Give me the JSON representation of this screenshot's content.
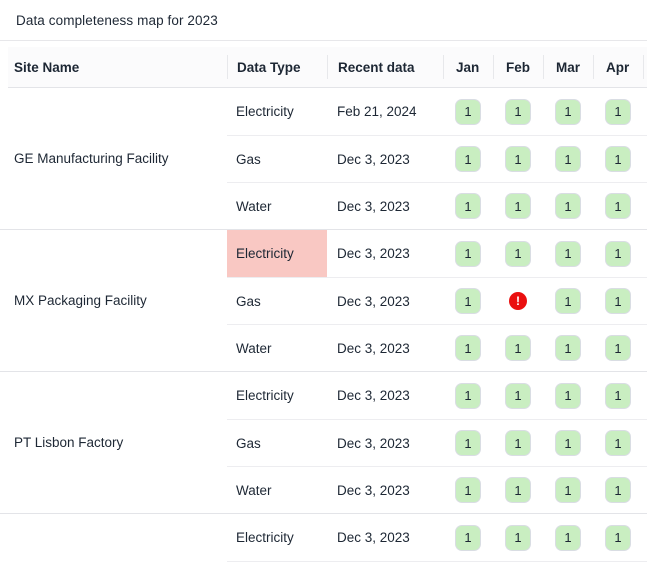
{
  "title": "Data completeness map for 2023",
  "colors": {
    "chip_green": "#c9eec1",
    "highlight_pink": "#f9c8c3",
    "error_red": "#ea0f0f",
    "text": "#1d2734"
  },
  "table": {
    "columns": [
      "Site Name",
      "Data Type",
      "Recent data",
      "Jan",
      "Feb",
      "Mar",
      "Apr"
    ],
    "groups": [
      {
        "site_name": "GE Manufacturing Facility",
        "rows": [
          {
            "data_type": "Electricity",
            "recent": "Feb 21, 2024",
            "highlight": false,
            "months": [
              "1",
              "1",
              "1",
              "1"
            ]
          },
          {
            "data_type": "Gas",
            "recent": "Dec 3, 2023",
            "highlight": false,
            "months": [
              "1",
              "1",
              "1",
              "1"
            ]
          },
          {
            "data_type": "Water",
            "recent": "Dec 3, 2023",
            "highlight": false,
            "months": [
              "1",
              "1",
              "1",
              "1"
            ]
          }
        ]
      },
      {
        "site_name": "MX Packaging Facility",
        "rows": [
          {
            "data_type": "Electricity",
            "recent": "Dec 3, 2023",
            "highlight": true,
            "months": [
              "1",
              "1",
              "1",
              "1"
            ]
          },
          {
            "data_type": "Gas",
            "recent": "Dec 3, 2023",
            "highlight": false,
            "months": [
              "1",
              "error",
              "1",
              "1"
            ]
          },
          {
            "data_type": "Water",
            "recent": "Dec 3, 2023",
            "highlight": false,
            "months": [
              "1",
              "1",
              "1",
              "1"
            ]
          }
        ]
      },
      {
        "site_name": "PT Lisbon Factory",
        "rows": [
          {
            "data_type": "Electricity",
            "recent": "Dec 3, 2023",
            "highlight": false,
            "months": [
              "1",
              "1",
              "1",
              "1"
            ]
          },
          {
            "data_type": "Gas",
            "recent": "Dec 3, 2023",
            "highlight": false,
            "months": [
              "1",
              "1",
              "1",
              "1"
            ]
          },
          {
            "data_type": "Water",
            "recent": "Dec 3, 2023",
            "highlight": false,
            "months": [
              "1",
              "1",
              "1",
              "1"
            ]
          }
        ]
      },
      {
        "site_name": "",
        "rows": [
          {
            "data_type": "Electricity",
            "recent": "Dec 3, 2023",
            "highlight": false,
            "months": [
              "1",
              "1",
              "1",
              "1"
            ]
          }
        ]
      }
    ]
  },
  "status_values": {
    "complete": "1",
    "error_symbol": "!"
  }
}
